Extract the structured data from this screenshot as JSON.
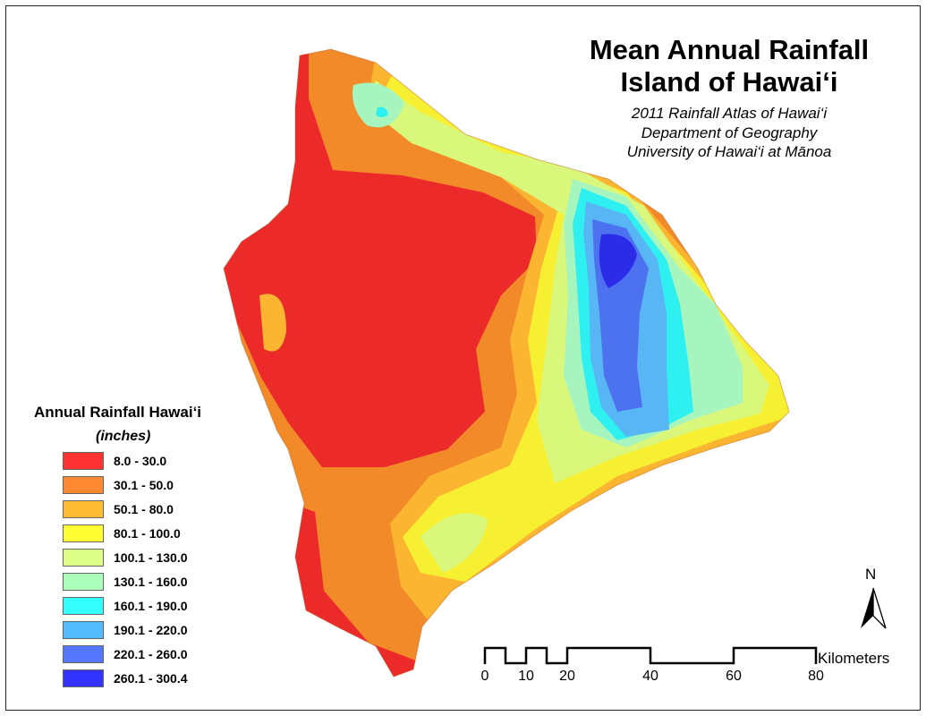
{
  "title": {
    "line1": "Mean Annual Rainfall",
    "line2": "Island of Hawai‘i"
  },
  "subtitle": {
    "line1": "2011 Rainfall Atlas of Hawai‘i",
    "line2": "Department of Geography",
    "line3": "University of Hawai‘i at Mānoa"
  },
  "legend": {
    "title": "Annual Rainfall Hawai‘i",
    "unit": "(inches)",
    "classes": [
      {
        "label": "8.0 - 30.0",
        "color": "#ff3333"
      },
      {
        "label": "30.1 - 50.0",
        "color": "#ff8833"
      },
      {
        "label": "50.1 - 80.0",
        "color": "#ffbb33"
      },
      {
        "label": "80.1 - 100.0",
        "color": "#ffff33"
      },
      {
        "label": "100.1 - 130.0",
        "color": "#ddff88"
      },
      {
        "label": "130.1 - 160.0",
        "color": "#aaffbb"
      },
      {
        "label": "160.1 - 190.0",
        "color": "#33ffff"
      },
      {
        "label": "190.1 - 220.0",
        "color": "#55bbff"
      },
      {
        "label": "220.1 - 260.0",
        "color": "#5577ff"
      },
      {
        "label": "260.1 - 300.4",
        "color": "#3333ff"
      }
    ]
  },
  "scale_bar": {
    "unit": "Kilometers",
    "ticks": [
      "0",
      "10",
      "20",
      "40",
      "60",
      "80"
    ]
  },
  "north_arrow": {
    "label": "N",
    "icon": "north-arrow-icon"
  }
}
